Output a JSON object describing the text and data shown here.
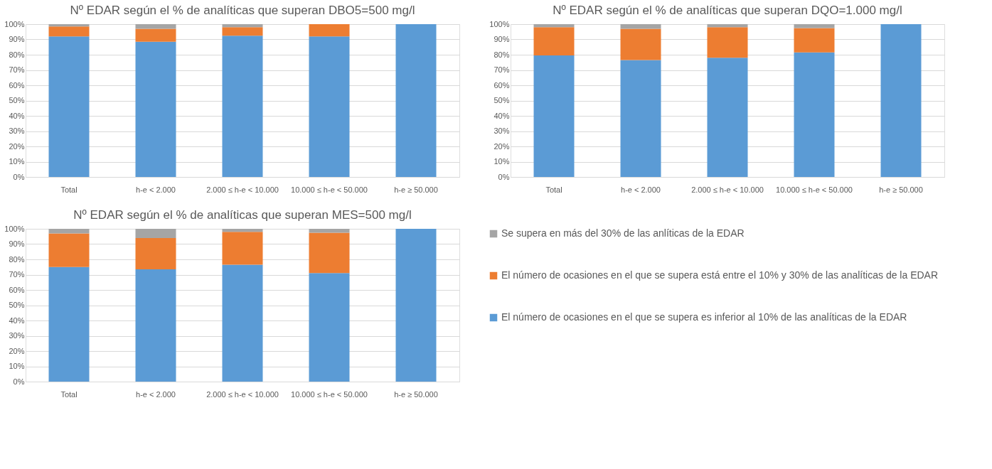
{
  "chart_data": [
    {
      "type": "bar",
      "stacked": true,
      "title": "Nº EDAR según el % de analíticas que superan DBO5=500 mg/l",
      "categories": [
        "Total",
        "h-e < 2.000",
        "2.000 ≤ h-e < 10.000",
        "10.000 ≤ h-e < 50.000",
        "h-e ≥ 50.000"
      ],
      "ylim": [
        0,
        100
      ],
      "yticks": [
        {
          "value": 0,
          "label": "0%"
        },
        {
          "value": 10,
          "label": "10%"
        },
        {
          "value": 20,
          "label": "20%"
        },
        {
          "value": 30,
          "label": "30%"
        },
        {
          "value": 40,
          "label": "40%"
        },
        {
          "value": 50,
          "label": "50%"
        },
        {
          "value": 60,
          "label": "60%"
        },
        {
          "value": 70,
          "label": "70%"
        },
        {
          "value": 80,
          "label": "80%"
        },
        {
          "value": 90,
          "label": "90%"
        },
        {
          "value": 100,
          "label": "100%"
        }
      ],
      "grid": "y",
      "series": [
        {
          "color": "#5b9bd5",
          "values": [
            92,
            88.5,
            92.5,
            92,
            100
          ]
        },
        {
          "color": "#ed7d31",
          "values": [
            6.5,
            8.5,
            5.5,
            8,
            0
          ]
        },
        {
          "color": "#a5a5a5",
          "values": [
            1.5,
            3,
            2,
            0,
            0
          ]
        }
      ]
    },
    {
      "type": "bar",
      "stacked": true,
      "title": "Nº EDAR según el % de analíticas que superan DQO=1.000 mg/l",
      "categories": [
        "Total",
        "h-e < 2.000",
        "2.000 ≤ h-e < 10.000",
        "10.000 ≤ h-e < 50.000",
        "h-e ≥ 50.000"
      ],
      "ylim": [
        0,
        100
      ],
      "yticks": [
        {
          "value": 0,
          "label": "0%"
        },
        {
          "value": 10,
          "label": "10%"
        },
        {
          "value": 20,
          "label": "20%"
        },
        {
          "value": 30,
          "label": "30%"
        },
        {
          "value": 40,
          "label": "40%"
        },
        {
          "value": 50,
          "label": "50%"
        },
        {
          "value": 60,
          "label": "60%"
        },
        {
          "value": 70,
          "label": "70%"
        },
        {
          "value": 80,
          "label": "80%"
        },
        {
          "value": 90,
          "label": "90%"
        },
        {
          "value": 100,
          "label": "100%"
        }
      ],
      "grid": "y",
      "series": [
        {
          "color": "#5b9bd5",
          "values": [
            79.5,
            76.5,
            78,
            81.5,
            100
          ]
        },
        {
          "color": "#ed7d31",
          "values": [
            18.5,
            20.5,
            20,
            16,
            0
          ]
        },
        {
          "color": "#a5a5a5",
          "values": [
            2,
            3,
            2,
            2.5,
            0
          ]
        }
      ]
    },
    {
      "type": "bar",
      "stacked": true,
      "title": "Nº EDAR según el % de analíticas que superan MES=500 mg/l",
      "categories": [
        "Total",
        "h-e < 2.000",
        "2.000 ≤ h-e < 10.000",
        "10.000 ≤ h-e < 50.000",
        "h-e ≥ 50.000"
      ],
      "ylim": [
        0,
        100
      ],
      "yticks": [
        {
          "value": 0,
          "label": "0%"
        },
        {
          "value": 10,
          "label": "10%"
        },
        {
          "value": 20,
          "label": "20%"
        },
        {
          "value": 30,
          "label": "30%"
        },
        {
          "value": 40,
          "label": "40%"
        },
        {
          "value": 50,
          "label": "50%"
        },
        {
          "value": 60,
          "label": "60%"
        },
        {
          "value": 70,
          "label": "70%"
        },
        {
          "value": 80,
          "label": "80%"
        },
        {
          "value": 90,
          "label": "90%"
        },
        {
          "value": 100,
          "label": "100%"
        }
      ],
      "grid": "y",
      "legend": "right",
      "series": [
        {
          "name": "El número de ocasiones en el que se supera es inferior al 10% de las analíticas de la EDAR",
          "color": "#5b9bd5",
          "values": [
            75,
            73.5,
            76.5,
            71,
            100
          ]
        },
        {
          "name": "El número de ocasiones en el que se supera está entre el 10% y 30% de las analíticas de la EDAR",
          "color": "#ed7d31",
          "values": [
            22,
            20.5,
            21.5,
            26.5,
            0
          ]
        },
        {
          "name": "Se supera en más del 30% de las anlíticas de la EDAR",
          "color": "#a5a5a5",
          "values": [
            3,
            6,
            2,
            2.5,
            0
          ]
        }
      ]
    }
  ]
}
